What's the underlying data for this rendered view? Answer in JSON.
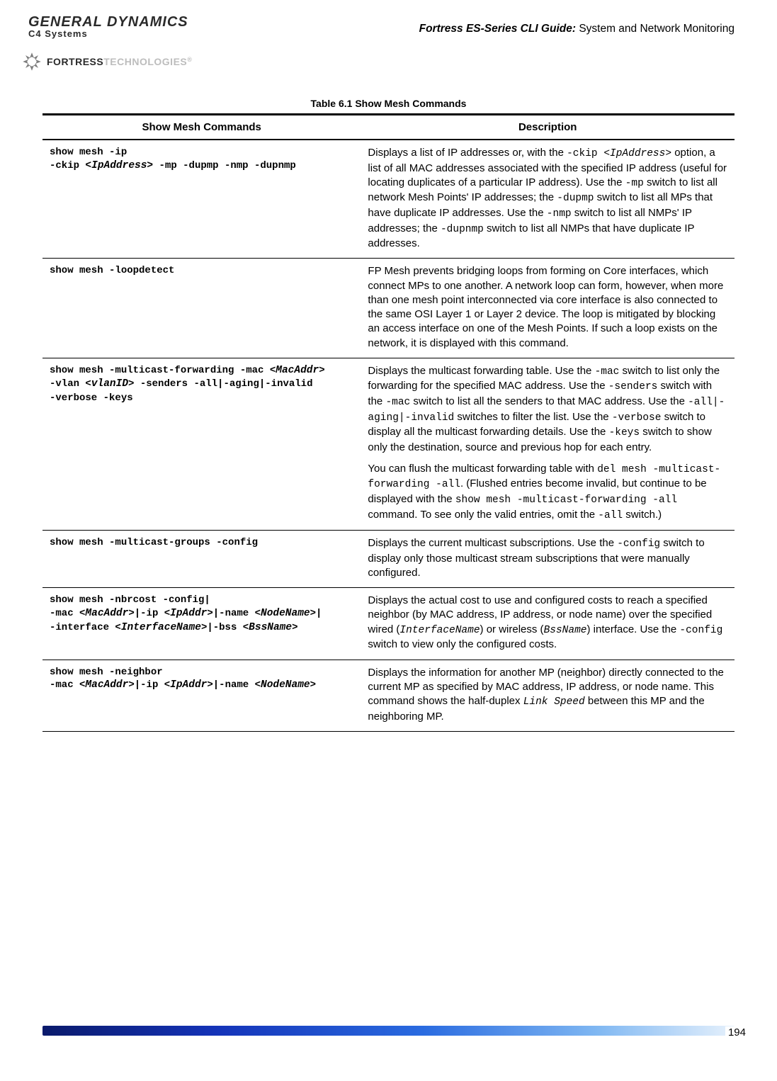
{
  "header": {
    "gd_top": "GENERAL DYNAMICS",
    "gd_sub": "C4 Systems",
    "fortress_brand": "FORTRESS",
    "fortress_sub": "TECHNOLOGIES",
    "title_italic": "Fortress ES-Series CLI Guide:",
    "title_rest": " System and Network Monitoring"
  },
  "table": {
    "caption": "Table 6.1 Show Mesh Commands",
    "col1_header": "Show Mesh Commands",
    "col2_header": "Description",
    "rows": [
      {
        "cmd_lines": [
          [
            {
              "t": "show mesh -ip"
            }
          ],
          [
            {
              "t": "-ckip "
            },
            {
              "t": "<IpAddress>",
              "i": true
            },
            {
              "t": " -mp -dupmp -nmp -dupnmp"
            }
          ]
        ],
        "desc": [
          [
            {
              "t": "Displays a list of IP addresses or, with the "
            },
            {
              "t": "-ckip ",
              "m": true
            },
            {
              "t": "<IpAddress>",
              "mi": true
            },
            {
              "t": " option, a list of all MAC addresses associated with the specified IP address (useful for locating duplicates of a particular IP address). Use the "
            },
            {
              "t": "-mp",
              "m": true
            },
            {
              "t": " switch to list all network Mesh Points' IP addresses; the "
            },
            {
              "t": "-dupmp",
              "m": true
            },
            {
              "t": " switch to list all MPs that have duplicate IP addresses. Use the "
            },
            {
              "t": "-nmp",
              "m": true
            },
            {
              "t": " switch to list all NMPs' IP addresses; the "
            },
            {
              "t": "-dupnmp",
              "m": true
            },
            {
              "t": " switch to list all NMPs that have duplicate IP addresses."
            }
          ]
        ]
      },
      {
        "cmd_lines": [
          [
            {
              "t": "show mesh -loopdetect"
            }
          ]
        ],
        "desc": [
          [
            {
              "t": "FP Mesh prevents bridging loops from forming on Core interfaces, which connect MPs to one another. A network loop can form, however, when more than one mesh point interconnected via core interface is also connected to the same OSI Layer 1 or Layer 2 device. The loop is mitigated by blocking an access interface on one of the Mesh Points. If such a loop exists on the network, it is displayed with this command."
            }
          ]
        ]
      },
      {
        "cmd_lines": [
          [
            {
              "t": "show mesh -multicast-forwarding -mac <"
            },
            {
              "t": "MacAddr",
              "i": true
            },
            {
              "t": ">"
            }
          ],
          [
            {
              "t": "-vlan <"
            },
            {
              "t": "vlanID",
              "i": true
            },
            {
              "t": "> -senders -all|-aging|-invalid"
            }
          ],
          [
            {
              "t": "-verbose -keys"
            }
          ]
        ],
        "desc": [
          [
            {
              "t": "Displays the multicast forwarding table. Use the "
            },
            {
              "t": "-mac",
              "m": true
            },
            {
              "t": " switch to list only the forwarding for the specified MAC address. Use the "
            },
            {
              "t": "-senders",
              "m": true
            },
            {
              "t": " switch with the "
            },
            {
              "t": "-mac",
              "m": true
            },
            {
              "t": " switch to list all the senders to that MAC address. Use the "
            },
            {
              "t": "-all|-aging|-invalid",
              "m": true
            },
            {
              "t": " switches to filter the list. Use the "
            },
            {
              "t": "-verbose",
              "m": true
            },
            {
              "t": " switch to display all the multicast forwarding details. Use the "
            },
            {
              "t": "-keys",
              "m": true
            },
            {
              "t": " switch to show only the destination, source and previous hop for each entry."
            }
          ],
          [
            {
              "t": "You can flush the multicast forwarding table with "
            },
            {
              "t": "del mesh -multicast-forwarding -all",
              "m": true
            },
            {
              "t": ". (Flushed entries become invalid, but continue to be displayed with the "
            },
            {
              "t": "show mesh -multicast-forwarding -all",
              "m": true
            },
            {
              "t": " command. To see only the valid entries, omit the "
            },
            {
              "t": "-all",
              "m": true
            },
            {
              "t": " switch.)"
            }
          ]
        ]
      },
      {
        "cmd_lines": [
          [
            {
              "t": "show mesh -multicast-groups -config"
            }
          ]
        ],
        "desc": [
          [
            {
              "t": "Displays the current multicast subscriptions. Use the "
            },
            {
              "t": "-config",
              "m": true
            },
            {
              "t": " switch to display only those multicast stream subscriptions that were manually configured."
            }
          ]
        ]
      },
      {
        "cmd_lines": [
          [
            {
              "t": "show mesh -nbrcost -config|"
            }
          ],
          [
            {
              "t": "-mac <"
            },
            {
              "t": "MacAddr",
              "i": true
            },
            {
              "t": ">|-ip <"
            },
            {
              "t": "IpAddr",
              "i": true
            },
            {
              "t": ">|-name <"
            },
            {
              "t": "NodeName",
              "i": true
            },
            {
              "t": ">|"
            }
          ],
          [
            {
              "t": "-interface <"
            },
            {
              "t": "InterfaceName",
              "i": true
            },
            {
              "t": ">|-bss <"
            },
            {
              "t": "BssName",
              "i": true
            },
            {
              "t": ">"
            }
          ]
        ],
        "desc": [
          [
            {
              "t": "Displays the actual cost to use and configured costs to reach a specified neighbor (by MAC address, IP address, or node name) over the specified wired ("
            },
            {
              "t": "InterfaceName",
              "mi": true
            },
            {
              "t": ") or wireless ("
            },
            {
              "t": "BssName",
              "mi": true
            },
            {
              "t": ") interface. Use the "
            },
            {
              "t": "-config",
              "m": true
            },
            {
              "t": " switch to view only the configured costs."
            }
          ]
        ]
      },
      {
        "cmd_lines": [
          [
            {
              "t": "show mesh -neighbor"
            }
          ],
          [
            {
              "t": "-mac <"
            },
            {
              "t": "MacAddr",
              "i": true
            },
            {
              "t": ">|-ip <"
            },
            {
              "t": "IpAddr",
              "i": true
            },
            {
              "t": ">|-name <"
            },
            {
              "t": "NodeName",
              "i": true
            },
            {
              "t": ">"
            }
          ]
        ],
        "desc": [
          [
            {
              "t": "Displays the information for another MP (neighbor) directly connected to the current MP as specified by MAC address, IP address, or node name. This command shows the half-duplex "
            },
            {
              "t": "Link Speed",
              "mi": true
            },
            {
              "t": " between this MP and the neighboring MP."
            }
          ]
        ]
      }
    ]
  },
  "page_number": "194",
  "colors": {
    "text": "#000000",
    "bg": "#ffffff",
    "rule_heavy": "#000000",
    "footer_gradient_from": "#0a1a6b",
    "footer_gradient_to": "#e6f1fc",
    "logo_light": "#bdbdbd"
  },
  "fonts": {
    "body": "Arial",
    "mono": "Courier New",
    "body_size_pt": 11,
    "mono_size_pt": 10.5,
    "caption_size_pt": 10.5,
    "caption_weight": "bold"
  }
}
